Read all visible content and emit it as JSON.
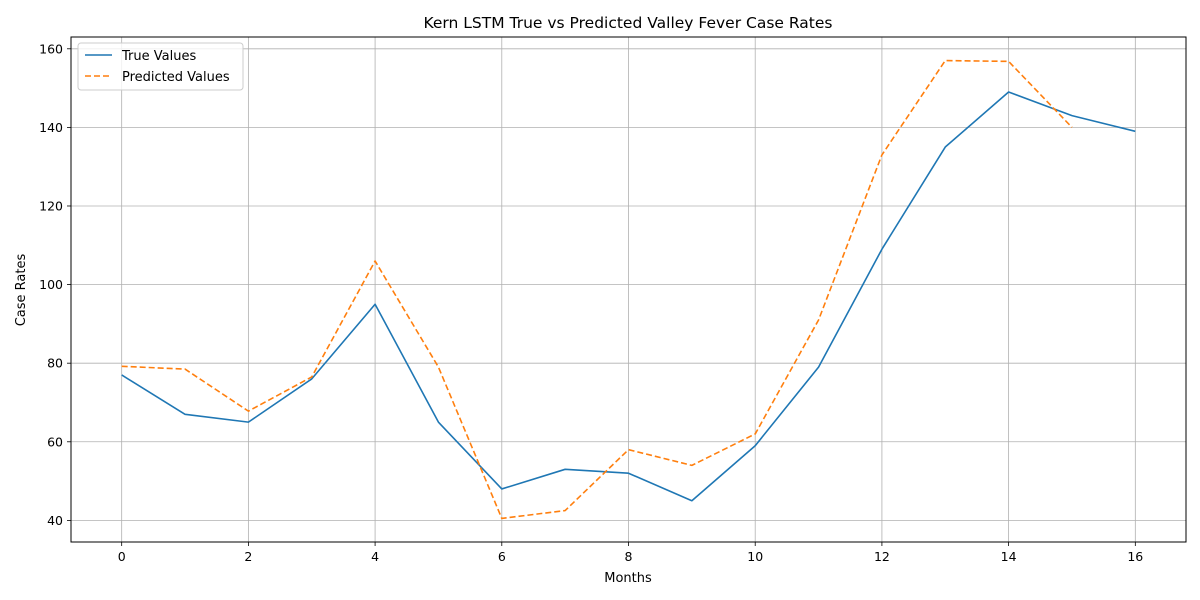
{
  "chart_data": {
    "type": "line",
    "title": "Kern LSTM True vs Predicted Valley Fever Case Rates",
    "xlabel": "Months",
    "ylabel": "Case Rates",
    "xlim": [
      -0.8,
      16.8
    ],
    "ylim": [
      34.5,
      163
    ],
    "xticks": [
      0,
      2,
      4,
      6,
      8,
      10,
      12,
      14,
      16
    ],
    "yticks": [
      40,
      60,
      80,
      100,
      120,
      140,
      160
    ],
    "grid": true,
    "legend_position": "top-left",
    "series": [
      {
        "name": "True Values",
        "color": "#1f77b4",
        "style": "solid",
        "x": [
          0,
          1,
          2,
          3,
          4,
          5,
          6,
          7,
          8,
          9,
          10,
          11,
          12,
          13,
          14,
          15,
          16
        ],
        "y": [
          77,
          67,
          65,
          76,
          95,
          65,
          48,
          53,
          52,
          45,
          59,
          79,
          109,
          135,
          149,
          143,
          139
        ]
      },
      {
        "name": "Predicted Values",
        "color": "#ff7f0e",
        "style": "dashed",
        "x": [
          0,
          1,
          2,
          3,
          4,
          5,
          6,
          7,
          8,
          9,
          10,
          11,
          12,
          13,
          14,
          15
        ],
        "y": [
          79.2,
          78.5,
          67.8,
          76.5,
          106,
          79,
          40.5,
          42.5,
          58,
          54,
          62,
          91,
          133,
          157,
          156.8,
          140
        ]
      }
    ]
  }
}
